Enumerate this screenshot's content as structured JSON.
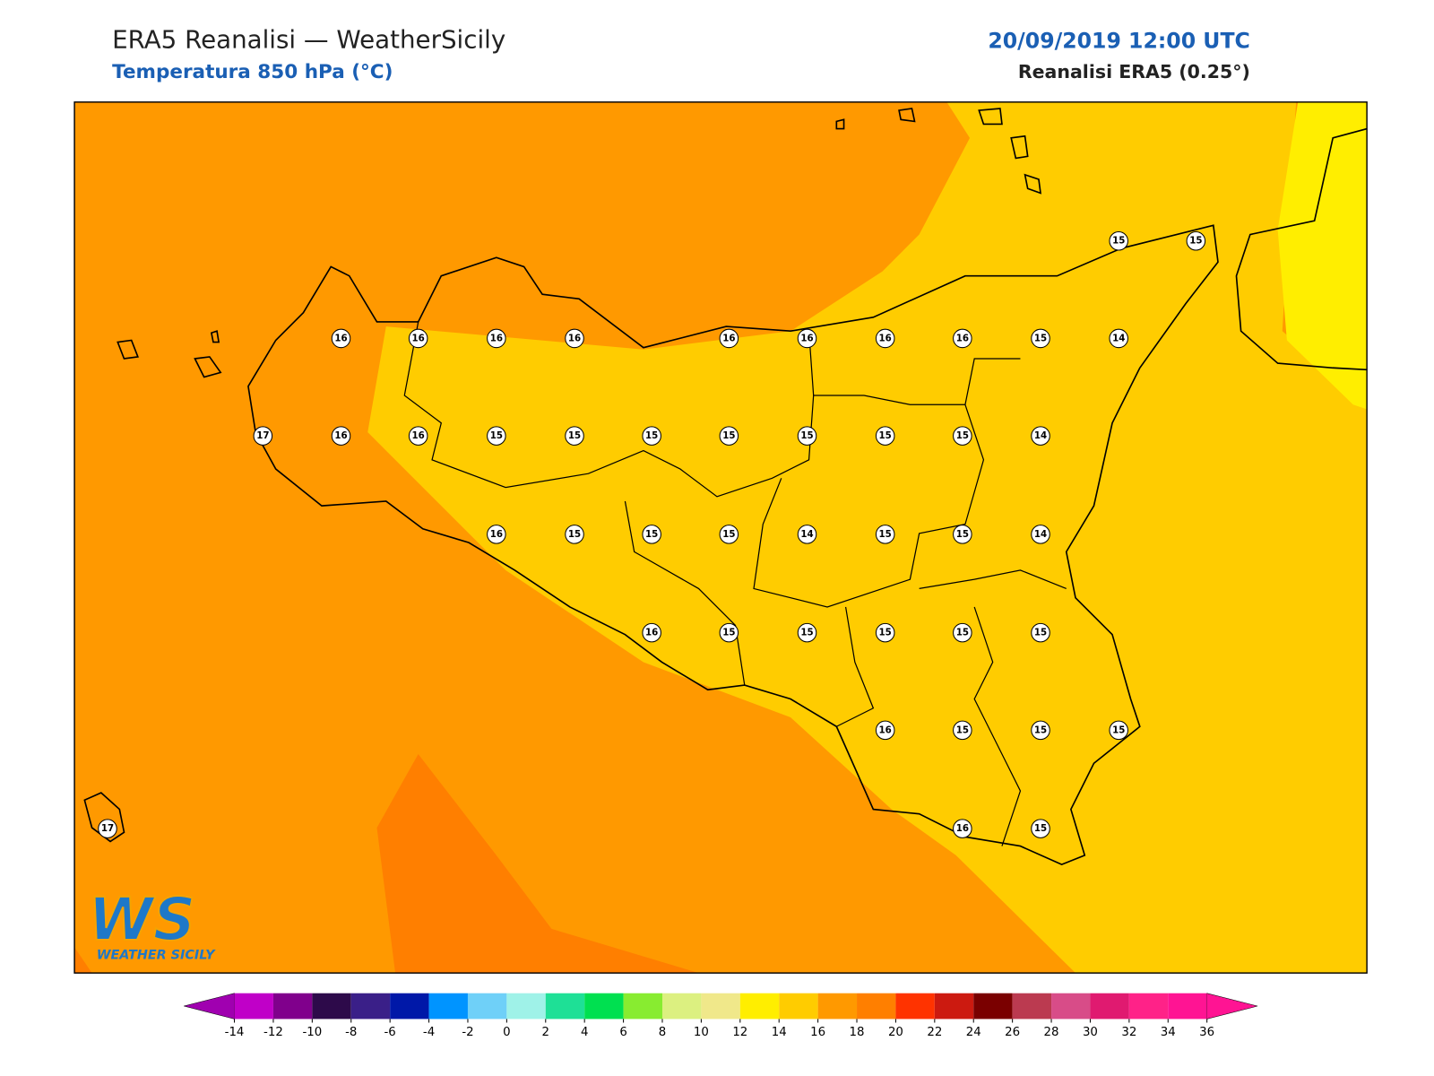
{
  "header": {
    "title": "ERA5 Reanalisi — WeatherSicily",
    "subtitle": "Temperatura 850 hPa (°C)",
    "datetime": "20/09/2019 12:00 UTC",
    "source": "Reanalisi ERA5 (0.25°)"
  },
  "stations": {
    "values": [
      15,
      15,
      16,
      16,
      16,
      16,
      16,
      16,
      16,
      16,
      15,
      14,
      17,
      16,
      16,
      15,
      15,
      15,
      15,
      15,
      15,
      15,
      14,
      16,
      15,
      15,
      15,
      14,
      15,
      15,
      14,
      16,
      15,
      15,
      15,
      15,
      15,
      16,
      15,
      15,
      15,
      17,
      16,
      15
    ]
  },
  "colorbar": {
    "bounds": [
      -14,
      -12,
      -10,
      -8,
      -6,
      -4,
      -2,
      0,
      2,
      4,
      6,
      8,
      10,
      12,
      14,
      16,
      18,
      20,
      22,
      24,
      26,
      28,
      30,
      32,
      34,
      36
    ],
    "under_color": "#a000b0",
    "over_color": "#ff1493",
    "colors": [
      "#c000c8",
      "#80008c",
      "#2d0a4a",
      "#3a1f88",
      "#0018a8",
      "#0094ff",
      "#6fd0f8",
      "#9ff2e8",
      "#1ee096",
      "#00e050",
      "#88ec30",
      "#dcf080",
      "#f0e88a",
      "#ffee00",
      "#ffcc00",
      "#ff9900",
      "#ff7f00",
      "#ff3300",
      "#cc1a10",
      "#7a0000",
      "#bb3a50",
      "#d84c88",
      "#e01a70",
      "#ff2288",
      "#ff1493"
    ]
  },
  "logo": {
    "mark": "WS",
    "name": "WEATHER SICILY"
  }
}
